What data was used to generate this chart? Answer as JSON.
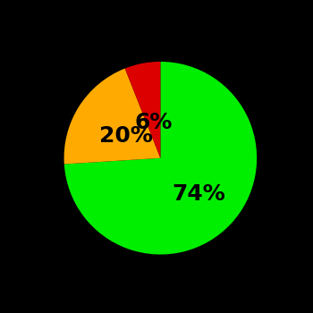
{
  "slices": [
    74,
    20,
    6
  ],
  "colors": [
    "#00ee00",
    "#ffaa00",
    "#dd0000"
  ],
  "labels": [
    "74%",
    "20%",
    "6%"
  ],
  "background_color": "#000000",
  "label_fontsize": 18,
  "label_fontweight": "bold",
  "startangle": 90,
  "label_radii": [
    0.55,
    0.42,
    0.38
  ],
  "label_color": "#000000"
}
